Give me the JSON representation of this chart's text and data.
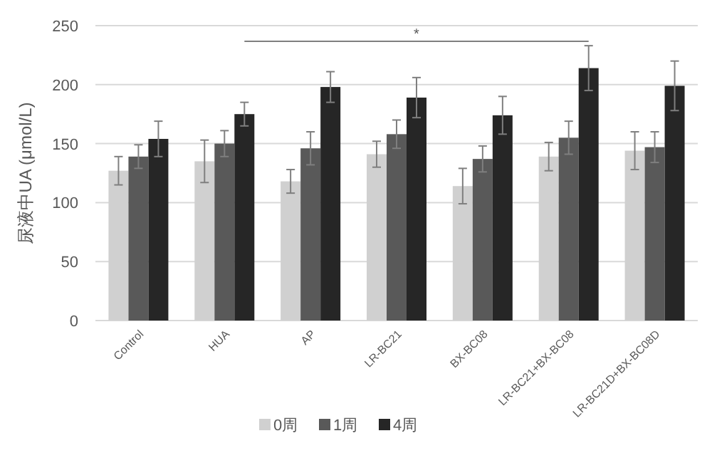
{
  "chart_data": {
    "type": "bar",
    "ylabel": "尿液中UA (μmol/L)",
    "categories": [
      "Control",
      "HUA",
      "AP",
      "LR-BC21",
      "BX-BC08",
      "LR-BC21+BX-BC08",
      "LR-BC21D+BX-BC08D"
    ],
    "series": [
      {
        "name": "0周",
        "color": "#d0d0d0",
        "values": [
          127,
          135,
          118,
          141,
          114,
          139,
          144
        ],
        "errors": [
          12,
          18,
          10,
          11,
          15,
          12,
          16
        ]
      },
      {
        "name": "1周",
        "color": "#595959",
        "values": [
          139,
          150,
          146,
          158,
          137,
          155,
          147
        ],
        "errors": [
          10,
          11,
          14,
          12,
          11,
          14,
          13
        ]
      },
      {
        "name": "4周",
        "color": "#262626",
        "values": [
          154,
          175,
          198,
          189,
          174,
          214,
          199
        ],
        "errors": [
          15,
          10,
          13,
          17,
          16,
          19,
          21
        ]
      }
    ],
    "ylim": [
      0,
      250
    ],
    "yticks": [
      0,
      50,
      100,
      150,
      200,
      250
    ],
    "grid": "y",
    "legend": "bottom",
    "annotations": [
      "*"
    ]
  }
}
